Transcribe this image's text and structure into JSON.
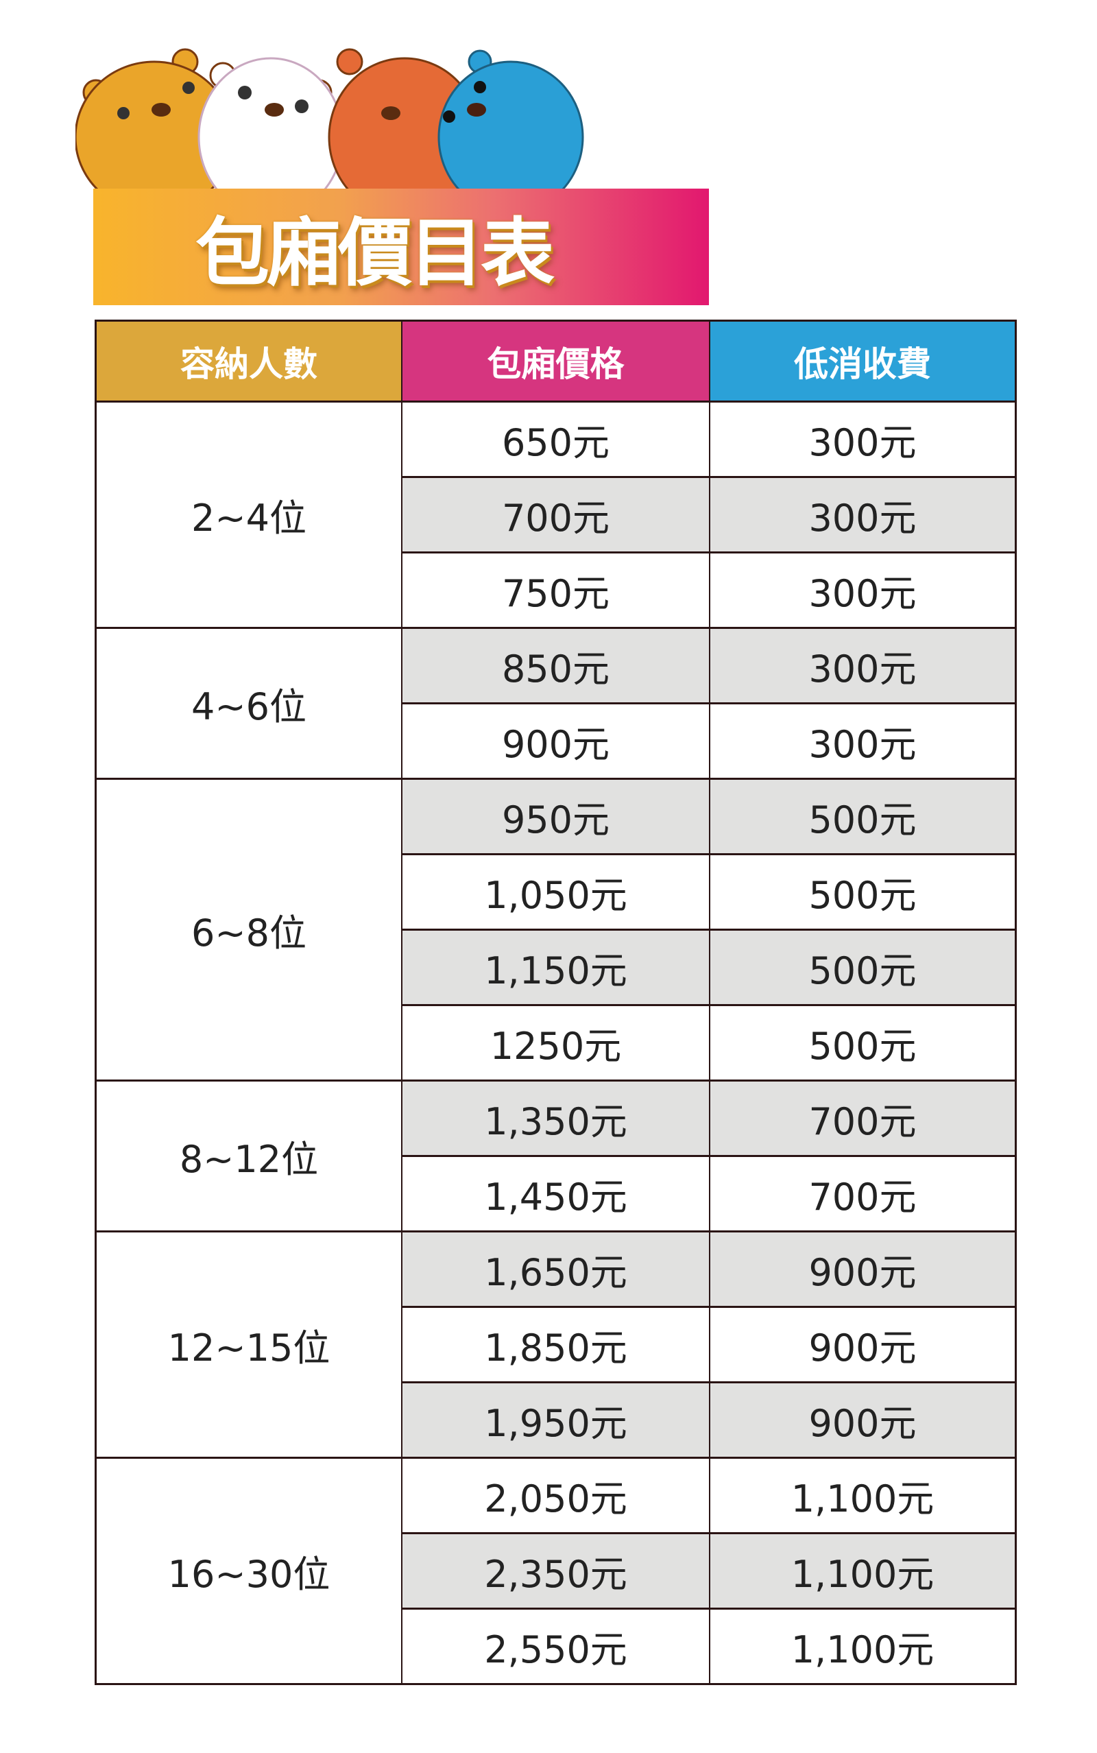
{
  "banner": {
    "title": "包廂價目表"
  },
  "colors": {
    "header_capacity": "#dca73b",
    "header_price": "#d6357f",
    "header_minimum": "#2ba1d8",
    "row_shade": "#e1e1e0"
  },
  "table": {
    "headers": [
      "容納人數",
      "包廂價格",
      "低消收費"
    ],
    "groups": [
      {
        "capacity": "2~4位",
        "rows": [
          {
            "price": "650元",
            "minimum": "300元"
          },
          {
            "price": "700元",
            "minimum": "300元"
          },
          {
            "price": "750元",
            "minimum": "300元"
          }
        ]
      },
      {
        "capacity": "4~6位",
        "rows": [
          {
            "price": "850元",
            "minimum": "300元"
          },
          {
            "price": "900元",
            "minimum": "300元"
          }
        ]
      },
      {
        "capacity": "6~8位",
        "rows": [
          {
            "price": "950元",
            "minimum": "500元"
          },
          {
            "price": "1,050元",
            "minimum": "500元"
          },
          {
            "price": "1,150元",
            "minimum": "500元"
          },
          {
            "price": "1250元",
            "minimum": "500元"
          }
        ]
      },
      {
        "capacity": "8~12位",
        "rows": [
          {
            "price": "1,350元",
            "minimum": "700元"
          },
          {
            "price": "1,450元",
            "minimum": "700元"
          }
        ]
      },
      {
        "capacity": "12~15位",
        "rows": [
          {
            "price": "1,650元",
            "minimum": "900元"
          },
          {
            "price": "1,850元",
            "minimum": "900元"
          },
          {
            "price": "1,950元",
            "minimum": "900元"
          }
        ]
      },
      {
        "capacity": "16~30位",
        "rows": [
          {
            "price": "2,050元",
            "minimum": "1,100元"
          },
          {
            "price": "2,350元",
            "minimum": "1,100元"
          },
          {
            "price": "2,550元",
            "minimum": "1,100元"
          }
        ]
      }
    ]
  }
}
